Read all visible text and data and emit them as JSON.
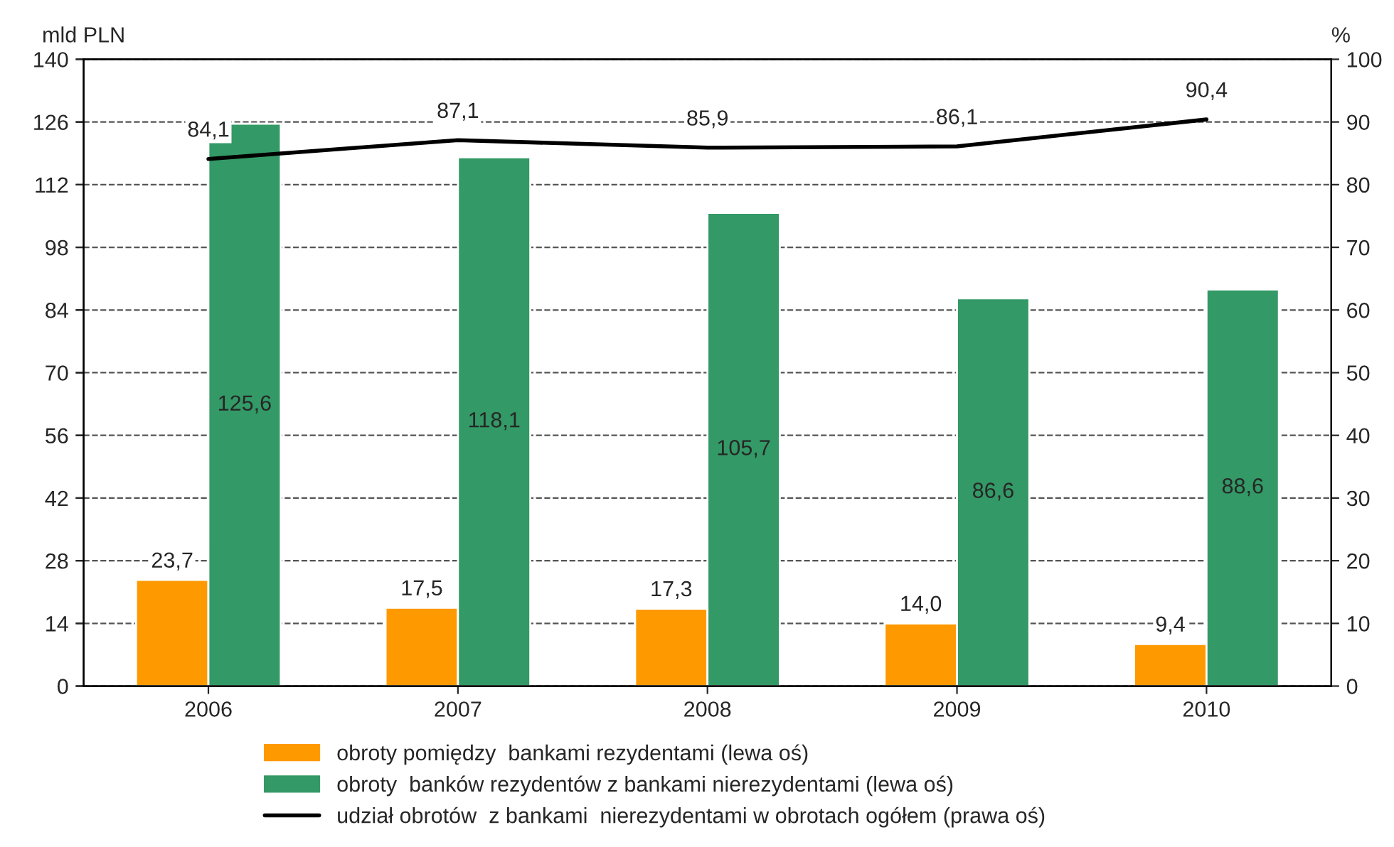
{
  "chart_data": {
    "type": "bar",
    "ylabel": "mld PLN",
    "y2label": "%",
    "categories": [
      "2006",
      "2007",
      "2008",
      "2009",
      "2010"
    ],
    "series": [
      {
        "name": "obroty pomiędzy  bankami rezydentami (lewa oś)",
        "color": "#ff9900",
        "values": [
          23.7,
          17.5,
          17.3,
          14.0,
          9.4
        ],
        "value_labels": [
          "23,7",
          "17,5",
          "17,3",
          "14,0",
          "9,4"
        ]
      },
      {
        "name": "obroty  banków rezydentów z bankami nierezydentami (lewa oś)",
        "color": "#339966",
        "values": [
          125.6,
          118.1,
          105.7,
          86.6,
          88.6
        ],
        "value_labels": [
          "125,6",
          "118,1",
          "105,7",
          "86,6",
          "88,6"
        ]
      },
      {
        "name": "udział obrotów  z bankami  nierezydentami w obrotach ogółem (prawa oś)",
        "color": "#000000",
        "type": "line",
        "axis": "y2",
        "values": [
          84.1,
          87.1,
          85.9,
          86.1,
          90.4
        ],
        "value_labels": [
          "84,1",
          "87,1",
          "85,9",
          "86,1",
          "90,4"
        ]
      }
    ],
    "ylim": [
      0,
      140
    ],
    "yticks": [
      0,
      14,
      28,
      42,
      56,
      70,
      84,
      98,
      112,
      126,
      140
    ],
    "y2lim": [
      0,
      100
    ],
    "y2ticks": [
      0,
      10,
      20,
      30,
      40,
      50,
      60,
      70,
      80,
      90,
      100
    ],
    "grid": "y",
    "legend": "bottom",
    "marker": "none",
    "line_style": "solid"
  }
}
